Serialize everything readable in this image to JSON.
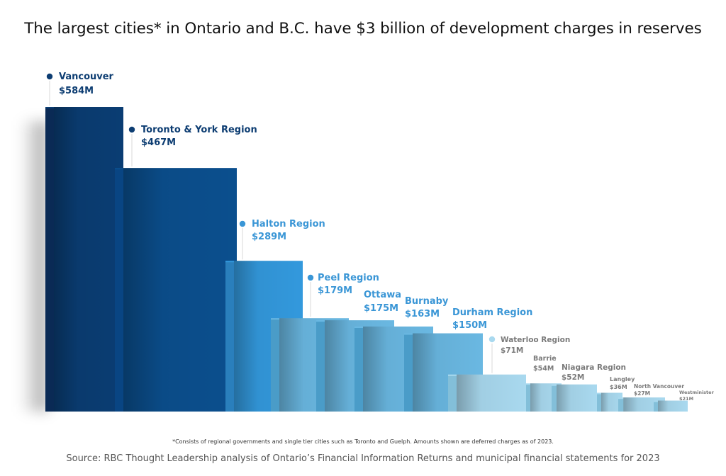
{
  "chart_data": {
    "type": "bar",
    "title": "The largest cities* in Ontario and B.C. have $3 billion of development charges in reserves",
    "unit": "$M",
    "categories": [
      "Vancouver",
      "Toronto & York Region",
      "Halton Region",
      "Peel Region",
      "Ottawa",
      "Burnaby",
      "Durham Region",
      "Waterloo Region",
      "Barrie",
      "Niagara Region",
      "Langley",
      "North Vancouver",
      "Westminister"
    ],
    "values": [
      584,
      467,
      289,
      179,
      175,
      163,
      150,
      71,
      54,
      52,
      36,
      27,
      21
    ],
    "value_labels": [
      "$584M",
      "$467M",
      "$289M",
      "$179M",
      "$175M",
      "$163M",
      "$150M",
      "$71M",
      "$54M",
      "$52M",
      "$36M",
      "$27M",
      "$21M"
    ],
    "ylim": [
      0,
      584
    ],
    "grid": false,
    "legend": "none",
    "colors": {
      "dark_navy": "#0a3d73",
      "navy": "#0b4f8e",
      "mid_blue": "#3399dd",
      "light_blue": "#6ab8e2",
      "pale_blue": "#a9d9ef",
      "label_navy": "#0d3d72",
      "label_blue": "#1f7cc4",
      "label_light": "#3a96d6",
      "label_grey": "#7a7a7a"
    }
  },
  "footnote": "*Consists of regional governments and single tier cities such as Toronto and Guelph. Amounts shown are deferred charges as of 2023.",
  "source": "Source: RBC Thought Leadership analysis of Ontario’s Financial Information Returns and municipal financial statements for 2023"
}
